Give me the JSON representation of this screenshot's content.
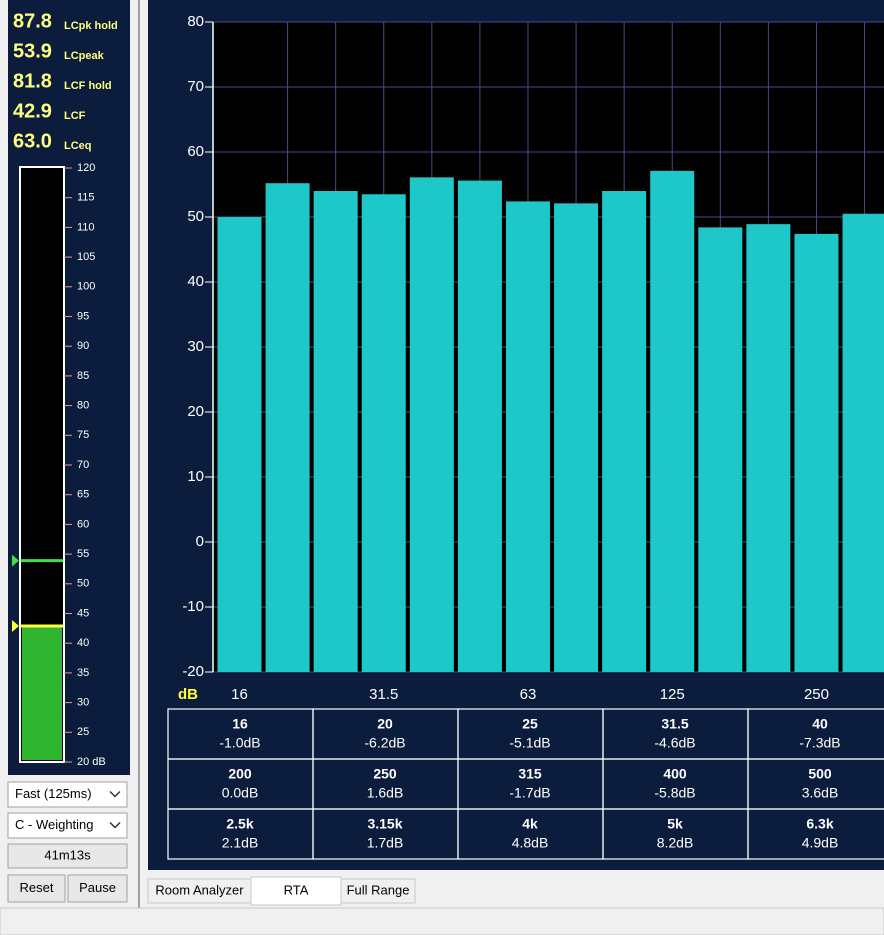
{
  "readings": [
    {
      "value": "87.8",
      "label": "LCpk hold"
    },
    {
      "value": "53.9",
      "label": "LCpeak"
    },
    {
      "value": "81.8",
      "label": "LCF hold"
    },
    {
      "value": "42.9",
      "label": "LCF"
    },
    {
      "value": "63.0",
      "label": "LCeq"
    }
  ],
  "meter": {
    "lim": [
      20,
      120
    ],
    "ticks": [
      120,
      115,
      110,
      105,
      100,
      95,
      90,
      85,
      80,
      75,
      70,
      65,
      60,
      55,
      50,
      45,
      40,
      35,
      30,
      25,
      {
        "value": 20,
        "label": "20 dB"
      }
    ],
    "level": 42.9,
    "peak_line": 53.9,
    "fill_color": "#2fb52f"
  },
  "controls": {
    "response": "Fast (125ms)",
    "weighting": "C - Weighting",
    "elapsed": "41m13s",
    "reset": "Reset",
    "pause": "Pause"
  },
  "chart": {
    "type": "bar",
    "y_label": "dB",
    "categories": [
      "16",
      null,
      null,
      "31.5",
      null,
      null,
      "63",
      null,
      null,
      "125",
      null,
      null,
      "250",
      null
    ],
    "values": [
      50,
      55.2,
      54,
      53.5,
      56.1,
      55.6,
      52.4,
      52.1,
      54,
      57.1,
      48.4,
      48.9,
      47.4,
      50.5
    ],
    "ylim": [
      -20,
      80
    ],
    "yticks": [
      80,
      70,
      60,
      50,
      40,
      30,
      20,
      10,
      0,
      -10,
      -20
    ],
    "color": "#1ec8c8",
    "grid": true
  },
  "table": {
    "rows": [
      [
        {
          "freq": "16",
          "level": "-1.0dB"
        },
        {
          "freq": "20",
          "level": "-6.2dB"
        },
        {
          "freq": "25",
          "level": "-5.1dB"
        },
        {
          "freq": "31.5",
          "level": "-4.6dB"
        },
        {
          "freq": "40",
          "level": "-7.3dB"
        }
      ],
      [
        {
          "freq": "200",
          "level": "0.0dB"
        },
        {
          "freq": "250",
          "level": "1.6dB"
        },
        {
          "freq": "315",
          "level": "-1.7dB"
        },
        {
          "freq": "400",
          "level": "-5.8dB"
        },
        {
          "freq": "500",
          "level": "3.6dB"
        }
      ],
      [
        {
          "freq": "2.5k",
          "level": "2.1dB"
        },
        {
          "freq": "3.15k",
          "level": "1.7dB"
        },
        {
          "freq": "4k",
          "level": "4.8dB"
        },
        {
          "freq": "5k",
          "level": "8.2dB"
        },
        {
          "freq": "6.3k",
          "level": "4.9dB"
        }
      ]
    ]
  },
  "tabs": [
    "Room Analyzer",
    "RTA",
    "Full Range"
  ]
}
